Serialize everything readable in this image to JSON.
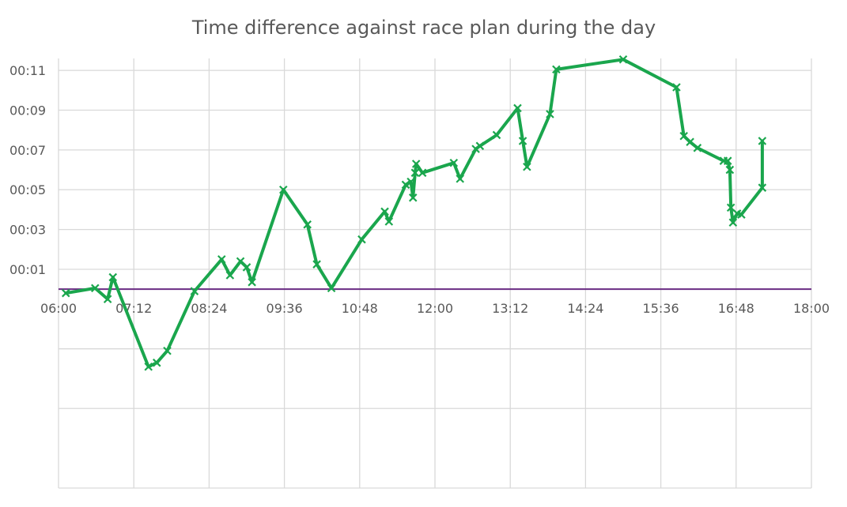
{
  "chart_data": {
    "type": "line",
    "title": "Time difference against race plan during the day",
    "xlabel": "",
    "ylabel": "",
    "x_unit": "minutes since midnight",
    "y_unit": "minutes",
    "xlim": [
      360,
      1080
    ],
    "ylim": [
      -10,
      11.6
    ],
    "x_ticks": [
      {
        "value": 360,
        "label": "06:00"
      },
      {
        "value": 432,
        "label": "07:12"
      },
      {
        "value": 504,
        "label": "08:24"
      },
      {
        "value": 576,
        "label": "09:36"
      },
      {
        "value": 648,
        "label": "10:48"
      },
      {
        "value": 720,
        "label": "12:00"
      },
      {
        "value": 792,
        "label": "13:12"
      },
      {
        "value": 864,
        "label": "14:24"
      },
      {
        "value": 936,
        "label": "15:36"
      },
      {
        "value": 1008,
        "label": "16:48"
      },
      {
        "value": 1080,
        "label": "18:00"
      }
    ],
    "y_ticks": [
      {
        "value": 1,
        "label": "00:01"
      },
      {
        "value": 3,
        "label": "00:03"
      },
      {
        "value": 5,
        "label": "00:05"
      },
      {
        "value": 7,
        "label": "00:07"
      },
      {
        "value": 9,
        "label": "00:09"
      },
      {
        "value": 11,
        "label": "00:11"
      }
    ],
    "gridlines_y": [
      -6,
      -3,
      1,
      3,
      5,
      7,
      9,
      11
    ],
    "grid": true,
    "colors": {
      "series": "#1aa64d",
      "baseline": "#6a2c83",
      "grid": "#d9d9d9",
      "text": "#595959"
    },
    "series": [
      {
        "values": [
          [
            367,
            -0.2
          ],
          [
            395,
            0.05
          ],
          [
            407,
            -0.5
          ],
          [
            412,
            0.6
          ],
          [
            446,
            -3.9
          ],
          [
            454,
            -3.7
          ],
          [
            464,
            -3.1
          ],
          [
            490,
            -0.1
          ],
          [
            516,
            1.5
          ],
          [
            524,
            0.7
          ],
          [
            534,
            1.4
          ],
          [
            540,
            1.1
          ],
          [
            545,
            0.35
          ],
          [
            575,
            5.0
          ],
          [
            598,
            3.25
          ],
          [
            607,
            1.25
          ],
          [
            621,
            0.05
          ],
          [
            650,
            2.5
          ],
          [
            672,
            3.9
          ],
          [
            676,
            3.4
          ],
          [
            692,
            5.25
          ],
          [
            697,
            5.4
          ],
          [
            699,
            4.6
          ],
          [
            701,
            5.85
          ],
          [
            702,
            6.3
          ],
          [
            708,
            5.85
          ],
          [
            738,
            6.35
          ],
          [
            744,
            5.55
          ],
          [
            759,
            7.05
          ],
          [
            763,
            7.2
          ],
          [
            779,
            7.75
          ],
          [
            799,
            9.1
          ],
          [
            804,
            7.45
          ],
          [
            808,
            6.15
          ],
          [
            830,
            8.8
          ],
          [
            836,
            11.05
          ],
          [
            900,
            11.55
          ],
          [
            951,
            10.15
          ],
          [
            958,
            7.7
          ],
          [
            964,
            7.4
          ],
          [
            971,
            7.1
          ],
          [
            996,
            6.45
          ],
          [
            1000,
            6.45
          ],
          [
            1002,
            6.0
          ],
          [
            1003,
            4.1
          ],
          [
            1005,
            3.35
          ],
          [
            1009,
            3.8
          ],
          [
            1013,
            3.75
          ],
          [
            1033,
            5.1
          ],
          [
            1033,
            7.45
          ]
        ]
      }
    ]
  }
}
